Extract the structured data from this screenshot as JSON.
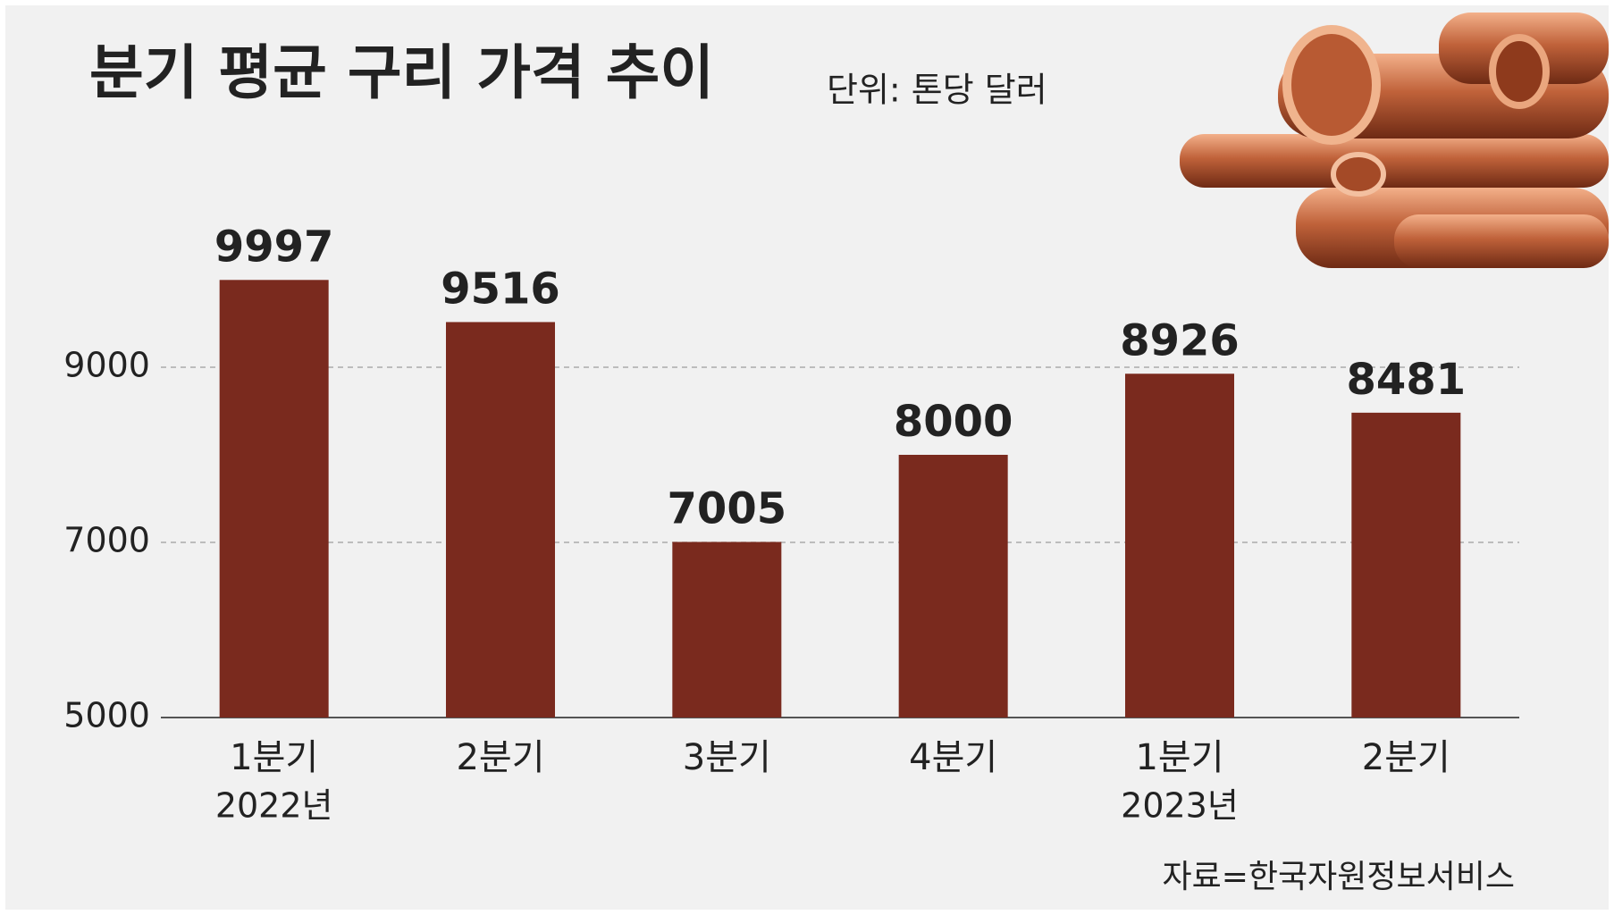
{
  "chart_data": {
    "type": "bar",
    "title": "분기 평균 구리 가격 추이",
    "subtitle": "단위: 톤당 달러",
    "categories": [
      "1분기",
      "2분기",
      "3분기",
      "4분기",
      "1분기",
      "2분기"
    ],
    "x_sublabels": [
      "2022년",
      null,
      null,
      null,
      "2023년",
      null
    ],
    "values": [
      9997,
      9516,
      7005,
      8000,
      8926,
      8481
    ],
    "color": "#7a2a1e",
    "ylim": [
      5000,
      10000
    ],
    "yticks": [
      5000,
      7000,
      9000
    ],
    "grid": true,
    "source": "자료=한국자원정보서비스"
  }
}
